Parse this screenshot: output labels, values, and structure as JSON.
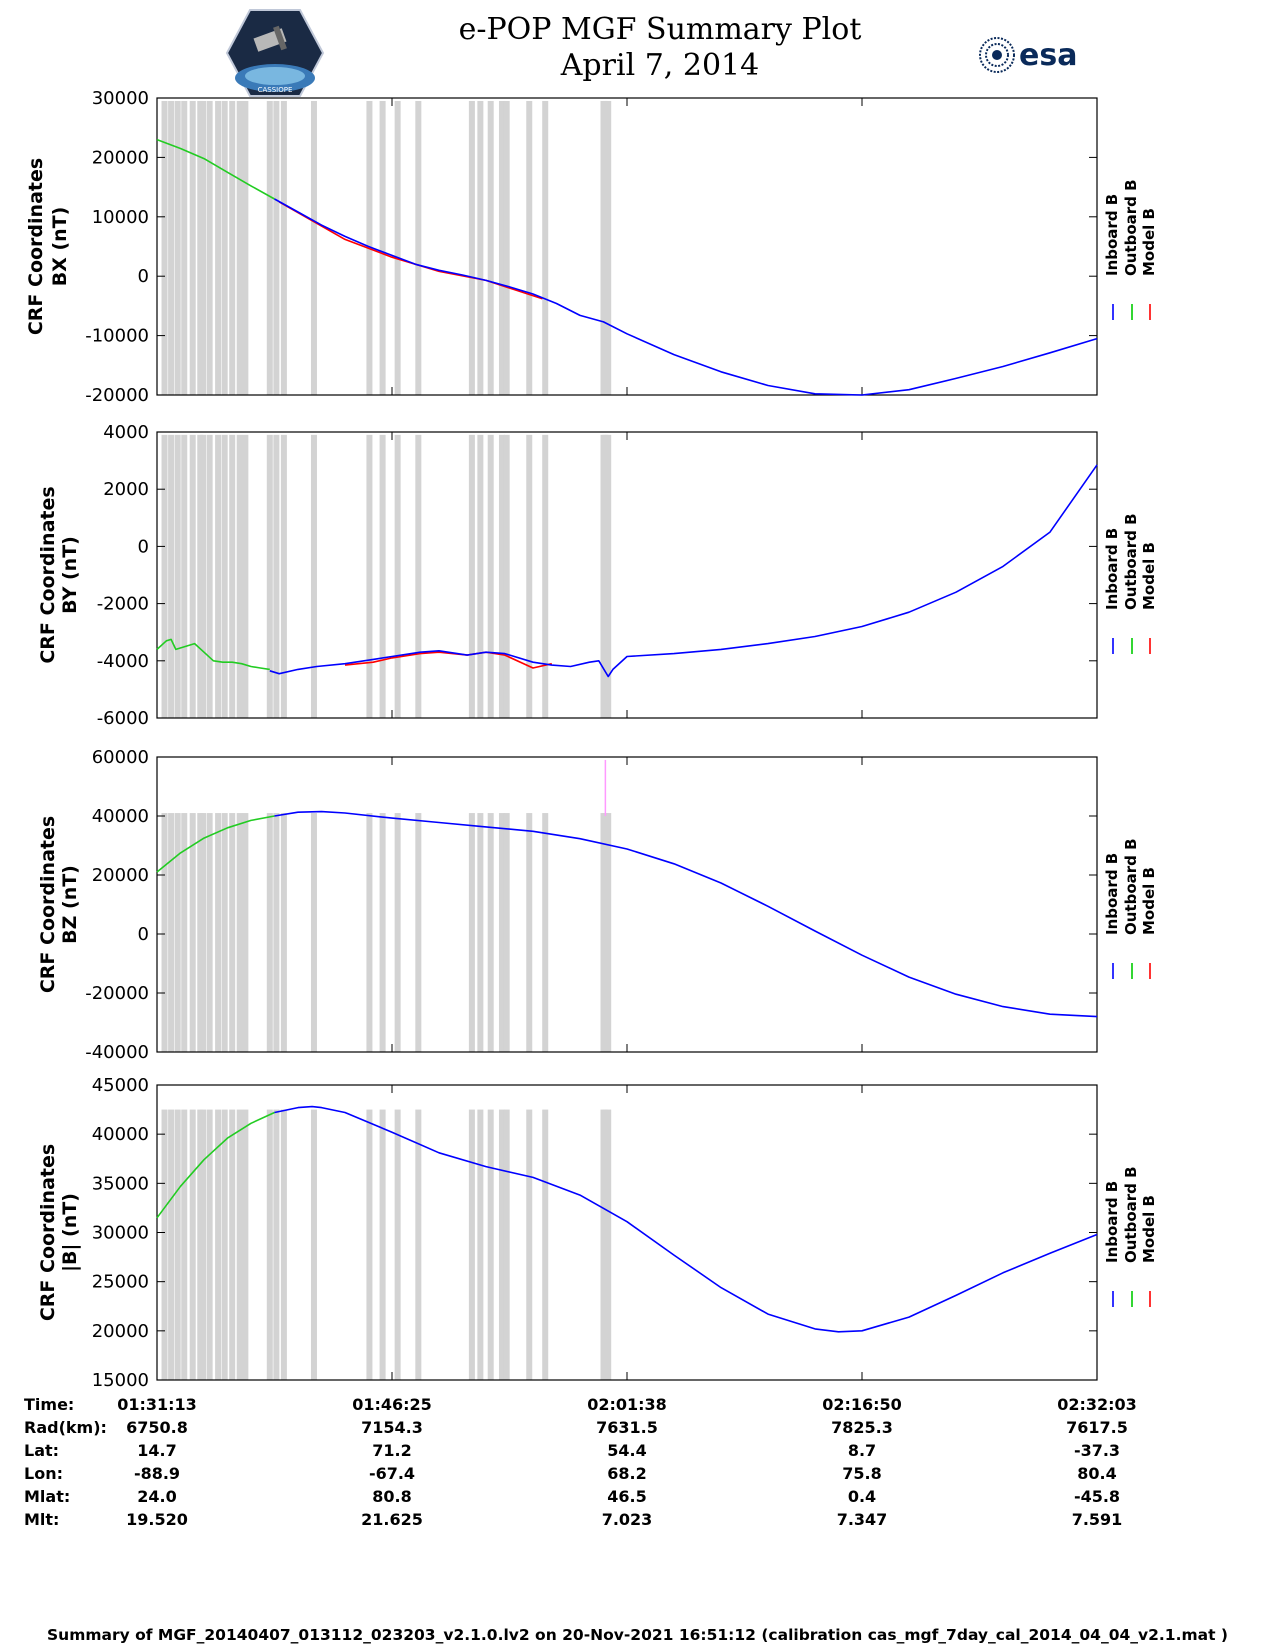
{
  "header": {
    "title_line1": "e-POP MGF Summary Plot",
    "title_line2": "April 7, 2014",
    "left_logo": "cassiope-mission-logo",
    "left_logo_text": "CASSIOPE",
    "right_logo_text": "esa"
  },
  "legend": {
    "labels": [
      "Inboard B",
      "Outboard B",
      "Model B"
    ],
    "colors": [
      "#0000ff",
      "#00cc00",
      "#ff0000"
    ]
  },
  "colors": {
    "inboard": "#0000ff",
    "outboard": "#22cc22",
    "model": "#ff0000",
    "gap_band": "#d3d3d3",
    "spike": "#ff99ff"
  },
  "chart_data": [
    {
      "type": "line",
      "ylabel_line1": "CRF Coordinates",
      "ylabel_line2": "BX (nT)",
      "ylim": [
        -20000,
        30000
      ],
      "yticks": [
        -20000,
        -10000,
        0,
        10000,
        20000,
        30000
      ],
      "ytick_labels": [
        "-20000",
        "-10000",
        "0",
        "10000",
        "20000",
        "30000"
      ],
      "series": [
        {
          "name": "Outboard B",
          "x": [
            0,
            0.025,
            0.05,
            0.075,
            0.1,
            0.125
          ],
          "values": [
            23000,
            21500,
            19800,
            17500,
            15200,
            13000
          ]
        },
        {
          "name": "Model B",
          "x": [
            0.13,
            0.2,
            0.25,
            0.3,
            0.35,
            0.41
          ],
          "values": [
            12500,
            6200,
            3200,
            800,
            -700,
            -3800
          ]
        },
        {
          "name": "Inboard B",
          "x": [
            0.125,
            0.15,
            0.175,
            0.2,
            0.225,
            0.25,
            0.275,
            0.3,
            0.325,
            0.35,
            0.375,
            0.4,
            0.425,
            0.45,
            0.475,
            0.5,
            0.55,
            0.6,
            0.65,
            0.7,
            0.75,
            0.8,
            0.85,
            0.9,
            0.95,
            1.0
          ],
          "values": [
            13000,
            10800,
            8600,
            6700,
            5000,
            3500,
            2000,
            1000,
            200,
            -700,
            -1800,
            -3000,
            -4600,
            -6600,
            -7700,
            -9700,
            -13200,
            -16100,
            -18400,
            -19800,
            -20000,
            -19100,
            -17200,
            -15200,
            -12900,
            -10500
          ]
        }
      ],
      "legend_labels": [
        "Inboard B",
        "Outboard B",
        "Model B"
      ]
    },
    {
      "type": "line",
      "ylabel_line1": "CRF Coordinates",
      "ylabel_line2": "BY (nT)",
      "ylim": [
        -6000,
        4000
      ],
      "yticks": [
        -6000,
        -4000,
        -2000,
        0,
        2000,
        4000
      ],
      "ytick_labels": [
        "-6000",
        "-4000",
        "-2000",
        "0",
        "2000",
        "4000"
      ],
      "series": [
        {
          "name": "Outboard B",
          "x": [
            0,
            0.01,
            0.015,
            0.02,
            0.03,
            0.04,
            0.05,
            0.06,
            0.07,
            0.08,
            0.09,
            0.1,
            0.11,
            0.12
          ],
          "values": [
            -3600,
            -3300,
            -3250,
            -3600,
            -3500,
            -3400,
            -3700,
            -4000,
            -4050,
            -4050,
            -4100,
            -4200,
            -4250,
            -4300
          ]
        },
        {
          "name": "Model B",
          "x": [
            0.2,
            0.23,
            0.25,
            0.28,
            0.3,
            0.33,
            0.35,
            0.37,
            0.4,
            0.42
          ],
          "values": [
            -4150,
            -4050,
            -3900,
            -3750,
            -3700,
            -3800,
            -3700,
            -3800,
            -4250,
            -4100
          ]
        },
        {
          "name": "Inboard B",
          "x": [
            0.12,
            0.13,
            0.15,
            0.17,
            0.2,
            0.23,
            0.25,
            0.28,
            0.3,
            0.33,
            0.35,
            0.37,
            0.4,
            0.42,
            0.44,
            0.46,
            0.47,
            0.48,
            0.485,
            0.5,
            0.55,
            0.6,
            0.65,
            0.7,
            0.75,
            0.8,
            0.85,
            0.9,
            0.95,
            1.0
          ],
          "values": [
            -4350,
            -4450,
            -4300,
            -4200,
            -4100,
            -3950,
            -3850,
            -3700,
            -3650,
            -3800,
            -3700,
            -3750,
            -4050,
            -4150,
            -4200,
            -4050,
            -4000,
            -4550,
            -4300,
            -3850,
            -3750,
            -3600,
            -3400,
            -3150,
            -2800,
            -2300,
            -1600,
            -700,
            500,
            2850
          ]
        }
      ],
      "legend_labels": [
        "Inboard B",
        "Outboard B",
        "Model B"
      ]
    },
    {
      "type": "line",
      "ylabel_line1": "CRF Coordinates",
      "ylabel_line2": "BZ (nT)",
      "ylim": [
        -40000,
        60000
      ],
      "yticks": [
        -40000,
        -20000,
        0,
        20000,
        40000,
        60000
      ],
      "ytick_labels": [
        "-40000",
        "-20000",
        "0",
        "20000",
        "40000",
        "60000"
      ],
      "series": [
        {
          "name": "Outboard B",
          "x": [
            0,
            0.025,
            0.05,
            0.075,
            0.1,
            0.125
          ],
          "values": [
            21000,
            27500,
            32500,
            36000,
            38500,
            40000
          ]
        },
        {
          "name": "Inboard B",
          "x": [
            0.125,
            0.15,
            0.175,
            0.2,
            0.25,
            0.3,
            0.35,
            0.4,
            0.45,
            0.5,
            0.55,
            0.6,
            0.65,
            0.7,
            0.75,
            0.8,
            0.85,
            0.9,
            0.95,
            1.0
          ],
          "values": [
            40000,
            41300,
            41500,
            41000,
            39300,
            37800,
            36300,
            34800,
            32300,
            28800,
            23800,
            17300,
            9400,
            1000,
            -7200,
            -14600,
            -20400,
            -24600,
            -27200,
            -28000
          ]
        }
      ],
      "spike": {
        "x": 0.477,
        "from": 40000,
        "to": 59000
      },
      "legend_labels": [
        "Inboard B",
        "Outboard B",
        "Model B"
      ]
    },
    {
      "type": "line",
      "ylabel_line1": "CRF Coordinates",
      "ylabel_line2": "|B| (nT)",
      "ylim": [
        15000,
        45000
      ],
      "yticks": [
        15000,
        20000,
        25000,
        30000,
        35000,
        40000,
        45000
      ],
      "ytick_labels": [
        "15000",
        "20000",
        "25000",
        "30000",
        "35000",
        "40000",
        "45000"
      ],
      "series": [
        {
          "name": "Outboard B",
          "x": [
            0,
            0.025,
            0.05,
            0.075,
            0.1,
            0.125
          ],
          "values": [
            31500,
            34700,
            37400,
            39600,
            41100,
            42200
          ]
        },
        {
          "name": "Inboard B",
          "x": [
            0.125,
            0.15,
            0.165,
            0.175,
            0.2,
            0.25,
            0.3,
            0.35,
            0.4,
            0.45,
            0.5,
            0.55,
            0.6,
            0.65,
            0.7,
            0.725,
            0.75,
            0.8,
            0.85,
            0.9,
            0.95,
            1.0
          ],
          "values": [
            42200,
            42700,
            42800,
            42700,
            42200,
            40200,
            38100,
            36700,
            35600,
            33800,
            31100,
            27700,
            24400,
            21700,
            20200,
            19900,
            20000,
            21400,
            23600,
            25900,
            27900,
            29800
          ]
        }
      ],
      "legend_labels": [
        "Inboard B",
        "Outboard B",
        "Model B"
      ]
    }
  ],
  "gap_bands": [
    0.008,
    0.015,
    0.022,
    0.029,
    0.038,
    0.046,
    0.049,
    0.056,
    0.065,
    0.072,
    0.08,
    0.088,
    0.094,
    0.12,
    0.127,
    0.135,
    0.167,
    0.226,
    0.24,
    0.256,
    0.278,
    0.335,
    0.344,
    0.355,
    0.367,
    0.372,
    0.396,
    0.413,
    0.475,
    0.477,
    0.48
  ],
  "ephemeris": {
    "row_labels": [
      "Time:",
      "Rad(km):",
      "Lat:",
      "Lon:",
      "Mlat:",
      "Mlt:"
    ],
    "columns": [
      [
        "01:31:13",
        "6750.8",
        "14.7",
        "-88.9",
        "24.0",
        "19.520"
      ],
      [
        "01:46:25",
        "7154.3",
        "71.2",
        "-67.4",
        "80.8",
        "21.625"
      ],
      [
        "02:01:38",
        "7631.5",
        "54.4",
        "68.2",
        "46.5",
        "7.023"
      ],
      [
        "02:16:50",
        "7825.3",
        "8.7",
        "75.8",
        "0.4",
        "7.347"
      ],
      [
        "02:32:03",
        "7617.5",
        "-37.3",
        "80.4",
        "-45.8",
        "7.591"
      ]
    ],
    "tick_x": [
      0,
      0.25,
      0.5,
      0.75,
      1.0
    ]
  },
  "footer": "Summary of MGF_20140407_013112_023203_v2.1.0.lv2 on 20-Nov-2021 16:51:12 (calibration cas_mgf_7day_cal_2014_04_04_v2.1.mat )"
}
